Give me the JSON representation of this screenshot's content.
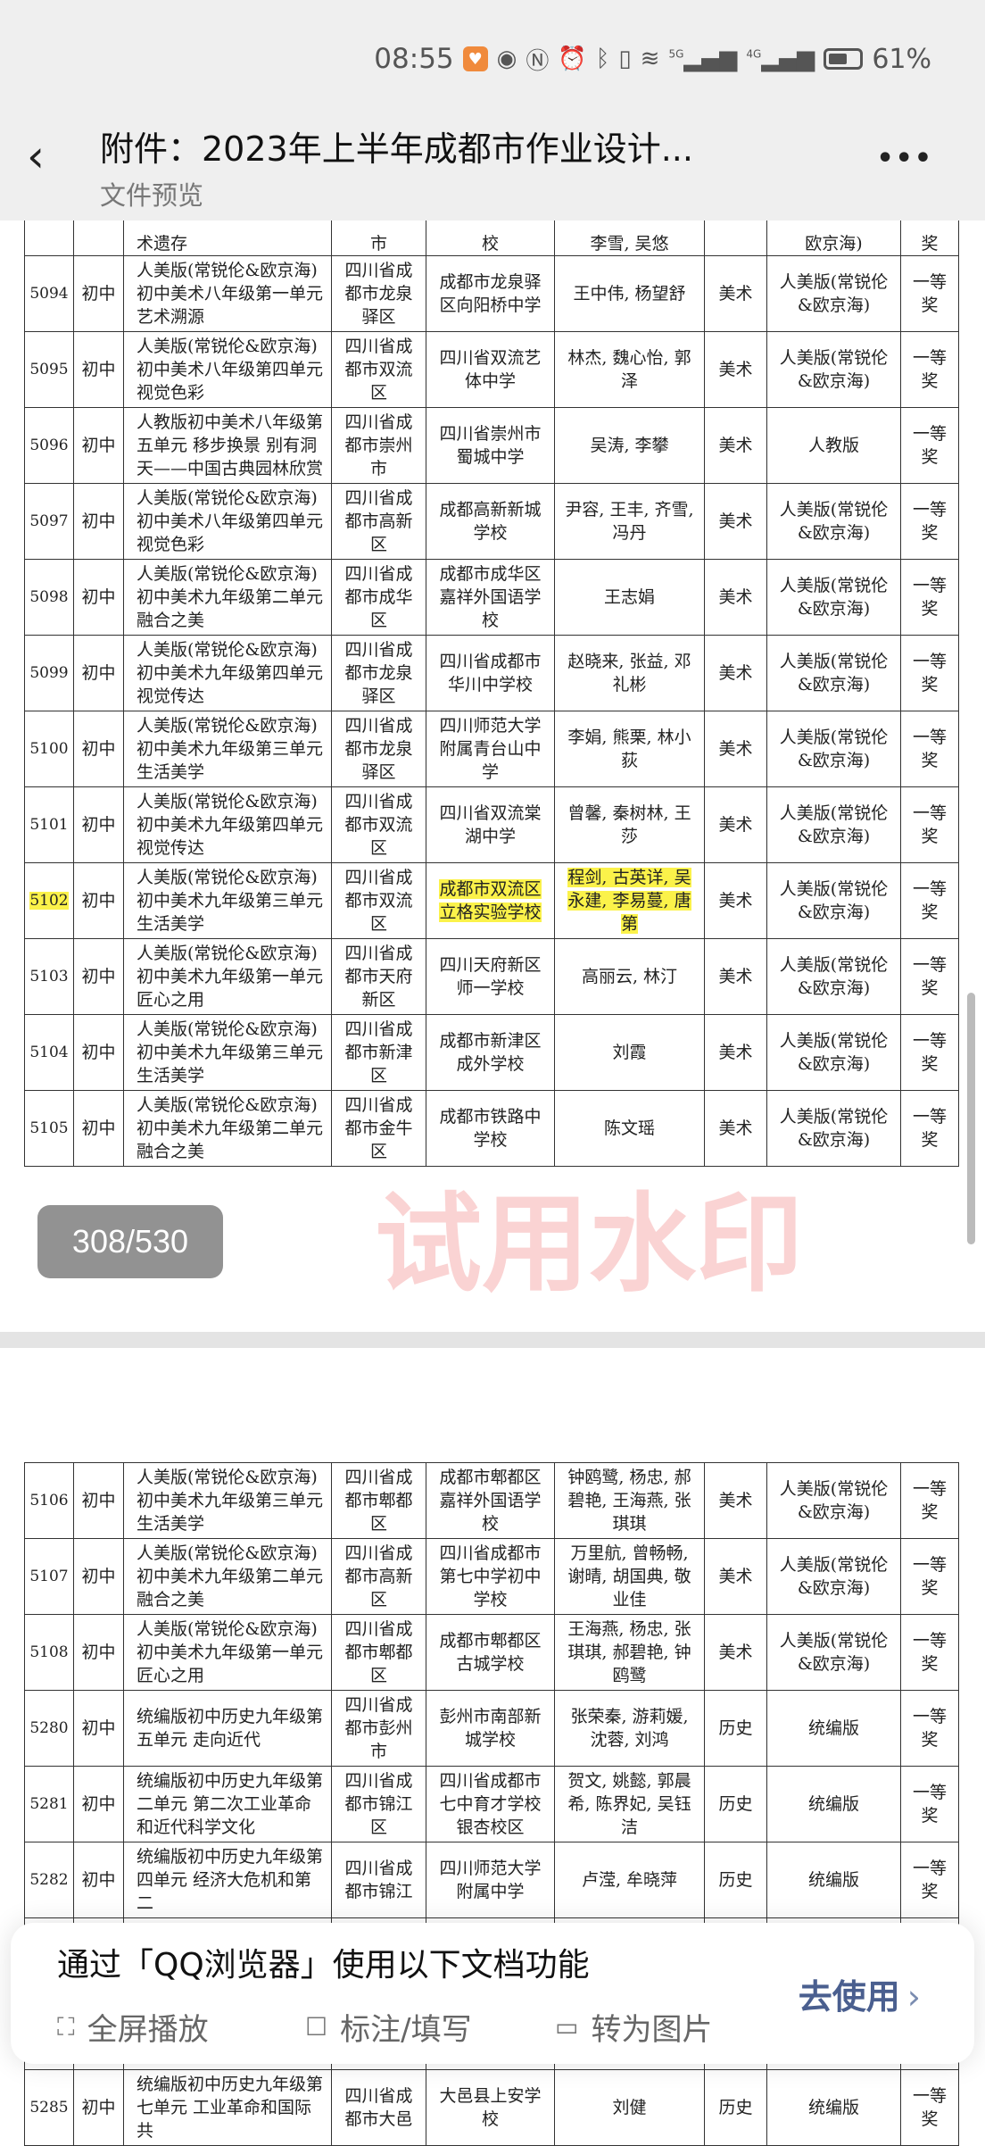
{
  "status_bar": {
    "time": "08:55",
    "battery": "61%",
    "battery_level": 0.61,
    "icons": [
      "health-app-icon",
      "eye-icon",
      "nfc-icon",
      "alarm-icon",
      "bluetooth-icon",
      "vibrate-icon",
      "wifi-icon",
      "5g-signal-icon",
      "4g-signal-icon",
      "battery-icon"
    ],
    "net1": "5G",
    "net2": "4G"
  },
  "header": {
    "title": "附件：2023年上半年成都市作业设计...",
    "subtitle": "文件预览",
    "back_icon": "chevron-left-icon",
    "more_icon": "more-icon"
  },
  "page_indicator": "308/530",
  "watermark": "试用水印",
  "page1": {
    "partial_top": {
      "id": "",
      "level": "",
      "title": "术遗存",
      "region": "市",
      "school": "校",
      "authors": "李雪, 吴悠",
      "subject": "",
      "version": "欧京海)",
      "award": "奖"
    },
    "rows": [
      {
        "id": "5094",
        "level": "初中",
        "title": "人美版(常锐伦&欧京海)初中美术八年级第一单元艺术溯源",
        "region": "四川省成都市龙泉驿区",
        "school": "成都市龙泉驿区向阳桥中学",
        "authors": "王中伟, 杨望舒",
        "subject": "美术",
        "version": "人美版(常锐伦&欧京海)",
        "award": "一等奖"
      },
      {
        "id": "5095",
        "level": "初中",
        "title": "人美版(常锐伦&欧京海)初中美术八年级第四单元视觉色彩",
        "region": "四川省成都市双流区",
        "school": "四川省双流艺体中学",
        "authors": "林杰, 魏心怡, 郭泽",
        "subject": "美术",
        "version": "人美版(常锐伦&欧京海)",
        "award": "一等奖"
      },
      {
        "id": "5096",
        "level": "初中",
        "title": "人教版初中美术八年级第五单元 移步换景 别有洞天——中国古典园林欣赏",
        "region": "四川省成都市崇州市",
        "school": "四川省崇州市蜀城中学",
        "authors": "吴涛, 李攀",
        "subject": "美术",
        "version": "人教版",
        "award": "一等奖"
      },
      {
        "id": "5097",
        "level": "初中",
        "title": "人美版(常锐伦&欧京海)初中美术八年级第四单元视觉色彩",
        "region": "四川省成都市高新区",
        "school": "成都高新新城学校",
        "authors": "尹容, 王丰, 齐雪, 冯丹",
        "subject": "美术",
        "version": "人美版(常锐伦&欧京海)",
        "award": "一等奖"
      },
      {
        "id": "5098",
        "level": "初中",
        "title": "人美版(常锐伦&欧京海)初中美术九年级第二单元融合之美",
        "region": "四川省成都市成华区",
        "school": "成都市成华区嘉祥外国语学校",
        "authors": "王志娟",
        "subject": "美术",
        "version": "人美版(常锐伦&欧京海)",
        "award": "一等奖"
      },
      {
        "id": "5099",
        "level": "初中",
        "title": "人美版(常锐伦&欧京海)初中美术九年级第四单元视觉传达",
        "region": "四川省成都市龙泉驿区",
        "school": "四川省成都市华川中学校",
        "authors": "赵晓来, 张益, 邓礼彬",
        "subject": "美术",
        "version": "人美版(常锐伦&欧京海)",
        "award": "一等奖"
      },
      {
        "id": "5100",
        "level": "初中",
        "title": "人美版(常锐伦&欧京海)初中美术九年级第三单元生活美学",
        "region": "四川省成都市龙泉驿区",
        "school": "四川师范大学附属青台山中学",
        "authors": "李娟, 熊栗, 林小荻",
        "subject": "美术",
        "version": "人美版(常锐伦&欧京海)",
        "award": "一等奖"
      },
      {
        "id": "5101",
        "level": "初中",
        "title": "人美版(常锐伦&欧京海)初中美术九年级第四单元视觉传达",
        "region": "四川省成都市双流区",
        "school": "四川省双流棠湖中学",
        "authors": "曾馨, 秦树林, 王莎",
        "subject": "美术",
        "version": "人美版(常锐伦&欧京海)",
        "award": "一等奖"
      },
      {
        "id": "5102",
        "level": "初中",
        "title": "人美版(常锐伦&欧京海)初中美术九年级第三单元生活美学",
        "region": "四川省成都市双流区",
        "school": "成都市双流区立格实验学校",
        "authors": "程剑, 古英详, 吴永建, 李易蔓, 唐第",
        "subject": "美术",
        "version": "人美版(常锐伦&欧京海)",
        "award": "一等奖",
        "highlighted": [
          "id",
          "school",
          "authors"
        ]
      },
      {
        "id": "5103",
        "level": "初中",
        "title": "人美版(常锐伦&欧京海)初中美术九年级第一单元匠心之用",
        "region": "四川省成都市天府新区",
        "school": "四川天府新区师一学校",
        "authors": "高丽云, 林汀",
        "subject": "美术",
        "version": "人美版(常锐伦&欧京海)",
        "award": "一等奖"
      },
      {
        "id": "5104",
        "level": "初中",
        "title": "人美版(常锐伦&欧京海)初中美术九年级第三单元生活美学",
        "region": "四川省成都市新津区",
        "school": "成都市新津区成外学校",
        "authors": "刘霞",
        "subject": "美术",
        "version": "人美版(常锐伦&欧京海)",
        "award": "一等奖"
      },
      {
        "id": "5105",
        "level": "初中",
        "title": "人美版(常锐伦&欧京海)初中美术九年级第二单元融合之美",
        "region": "四川省成都市金牛区",
        "school": "成都市铁路中学校",
        "authors": "陈文瑶",
        "subject": "美术",
        "version": "人美版(常锐伦&欧京海)",
        "award": "一等奖"
      }
    ]
  },
  "page2": {
    "rows": [
      {
        "id": "5106",
        "level": "初中",
        "title": "人美版(常锐伦&欧京海)初中美术九年级第三单元生活美学",
        "region": "四川省成都市郫都区",
        "school": "成都市郫都区嘉祥外国语学校",
        "authors": "钟鸥鹭, 杨忠, 郝碧艳, 王海燕, 张琪琪",
        "subject": "美术",
        "version": "人美版(常锐伦&欧京海)",
        "award": "一等奖"
      },
      {
        "id": "5107",
        "level": "初中",
        "title": "人美版(常锐伦&欧京海)初中美术九年级第二单元融合之美",
        "region": "四川省成都市高新区",
        "school": "四川省成都市第七中学初中学校",
        "authors": "万里航, 曾畅畅, 谢晴, 胡国典, 敬业佳",
        "subject": "美术",
        "version": "人美版(常锐伦&欧京海)",
        "award": "一等奖"
      },
      {
        "id": "5108",
        "level": "初中",
        "title": "人美版(常锐伦&欧京海)初中美术九年级第一单元匠心之用",
        "region": "四川省成都市郫都区",
        "school": "成都市郫都区古城学校",
        "authors": "王海燕, 杨忠, 张琪琪, 郝碧艳, 钟鸥鹭",
        "subject": "美术",
        "version": "人美版(常锐伦&欧京海)",
        "award": "一等奖"
      },
      {
        "id": "5280",
        "level": "初中",
        "title": "统编版初中历史九年级第五单元 走向近代",
        "region": "四川省成都市彭州市",
        "school": "彭州市南部新城学校",
        "authors": "张荣秦, 游莉媛, 沈蓉, 刘鸿",
        "subject": "历史",
        "version": "统编版",
        "award": "一等奖"
      },
      {
        "id": "5281",
        "level": "初中",
        "title": "统编版初中历史九年级第二单元 第二次工业革命和近代科学文化",
        "region": "四川省成都市锦江区",
        "school": "四川省成都市七中育才学校银杏校区",
        "authors": "贺文, 姚懿, 郭晨希, 陈界妃, 吴钰洁",
        "subject": "历史",
        "version": "统编版",
        "award": "一等奖"
      },
      {
        "id": "5282",
        "level": "初中",
        "title": "统编版初中历史九年级第四单元 经济大危机和第二",
        "region": "四川省成都市锦江",
        "school": "四川师范大学附属中学",
        "authors": "卢滢, 牟晓萍",
        "subject": "历史",
        "version": "统编版",
        "award": "一等奖"
      },
      {
        "id": "",
        "level": "",
        "title": "",
        "region": "",
        "school": "",
        "authors": "",
        "subject": "",
        "version": "",
        "award": ""
      },
      {
        "id": "5285",
        "level": "初中",
        "title": "统编版初中历史九年级第七单元 工业革命和国际共",
        "region": "四川省成都市大邑",
        "school": "大邑县上安学校",
        "authors": "刘健",
        "subject": "历史",
        "version": "统编版",
        "award": "一等奖"
      }
    ]
  },
  "popup": {
    "title": "通过「QQ浏览器」使用以下文档功能",
    "features": [
      {
        "label": "全屏播放",
        "icon": "fullscreen-icon"
      },
      {
        "label": "标注/填写",
        "icon": "edit-icon"
      },
      {
        "label": "转为图片",
        "icon": "image-icon"
      }
    ],
    "action": "去使用",
    "highlight_color": "#fbf24a",
    "action_color": "#4a5f8f"
  }
}
